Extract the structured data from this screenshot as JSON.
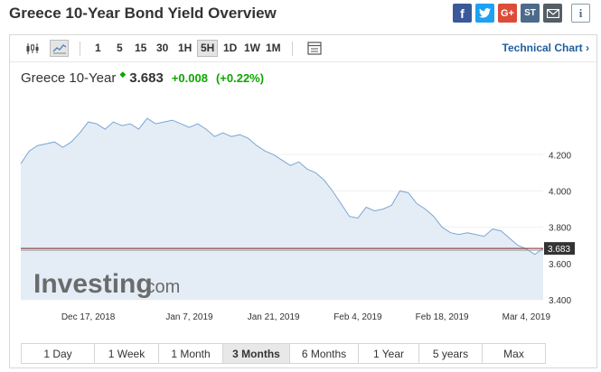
{
  "page": {
    "title": "Greece 10-Year Bond Yield Overview"
  },
  "share": {
    "facebook": "f",
    "twitter": "t",
    "googleplus": "G+",
    "stocktwits": "ST",
    "info": "i"
  },
  "toolbar": {
    "chart_types": [
      "candlestick-icon",
      "area-chart-icon"
    ],
    "ranges": [
      "1",
      "5",
      "15",
      "30",
      "1H",
      "5H",
      "1D",
      "1W",
      "1M"
    ],
    "active_range": "5H",
    "technical_chart_label": "Technical Chart ›"
  },
  "quote": {
    "name": "Greece 10-Year",
    "arrow": "◆",
    "price": "3.683",
    "change": "+0.008",
    "change_pct": "(+0.22%)"
  },
  "watermark": {
    "brand": "Investing",
    "suffix": ".com"
  },
  "periods": {
    "items": [
      "1 Day",
      "1 Week",
      "1 Month",
      "3 Months",
      "6 Months",
      "1 Year",
      "5 years",
      "Max"
    ],
    "active": "3 Months"
  },
  "chart_data": {
    "type": "area",
    "title": "",
    "xlabel": "",
    "ylabel": "",
    "ylim": [
      3.4,
      4.5
    ],
    "y_ticks": [
      "4.200",
      "4.000",
      "3.800",
      "3.600",
      "3.400"
    ],
    "x_ticks": [
      "Dec 17, 2018",
      "Jan 7, 2019",
      "Jan 21, 2019",
      "Feb 4, 2019",
      "Feb 18, 2019",
      "Mar 4, 2019"
    ],
    "last_value_label": "3.683",
    "reference_line": 3.683,
    "colors": {
      "line": "#7aa6d3",
      "fill": "#e4edf6",
      "price_line": "#7a2424",
      "label_bg": "#333333"
    },
    "series": [
      {
        "x": [
          "Dec 5",
          "Dec 6",
          "Dec 7",
          "Dec 10",
          "Dec 11",
          "Dec 12",
          "Dec 13",
          "Dec 14",
          "Dec 17",
          "Dec 18",
          "Dec 19",
          "Dec 20",
          "Dec 21",
          "Dec 24",
          "Dec 27",
          "Dec 28",
          "Dec 31",
          "Jan 2",
          "Jan 3",
          "Jan 4",
          "Jan 7",
          "Jan 8",
          "Jan 9",
          "Jan 10",
          "Jan 11",
          "Jan 14",
          "Jan 15",
          "Jan 16",
          "Jan 17",
          "Jan 18",
          "Jan 21",
          "Jan 22",
          "Jan 23",
          "Jan 24",
          "Jan 25",
          "Jan 28",
          "Jan 29",
          "Jan 30",
          "Jan 31",
          "Feb 1",
          "Feb 4",
          "Feb 5",
          "Feb 6",
          "Feb 7",
          "Feb 8",
          "Feb 11",
          "Feb 12",
          "Feb 13",
          "Feb 14",
          "Feb 15",
          "Feb 18",
          "Feb 19",
          "Feb 20",
          "Feb 21",
          "Feb 22",
          "Feb 25",
          "Feb 26",
          "Feb 27",
          "Feb 28",
          "Mar 1",
          "Mar 4",
          "Mar 5",
          "Mar 6"
        ],
        "values": [
          4.15,
          4.22,
          4.25,
          4.26,
          4.27,
          4.24,
          4.27,
          4.32,
          4.38,
          4.37,
          4.34,
          4.38,
          4.36,
          4.37,
          4.34,
          4.4,
          4.37,
          4.38,
          4.39,
          4.37,
          4.35,
          4.37,
          4.34,
          4.3,
          4.32,
          4.3,
          4.31,
          4.29,
          4.25,
          4.22,
          4.2,
          4.17,
          4.14,
          4.16,
          4.12,
          4.1,
          4.06,
          4.0,
          3.93,
          3.86,
          3.85,
          3.91,
          3.89,
          3.9,
          3.92,
          4.0,
          3.99,
          3.93,
          3.9,
          3.86,
          3.8,
          3.77,
          3.76,
          3.77,
          3.76,
          3.75,
          3.79,
          3.78,
          3.74,
          3.7,
          3.68,
          3.65,
          3.683
        ]
      }
    ]
  }
}
